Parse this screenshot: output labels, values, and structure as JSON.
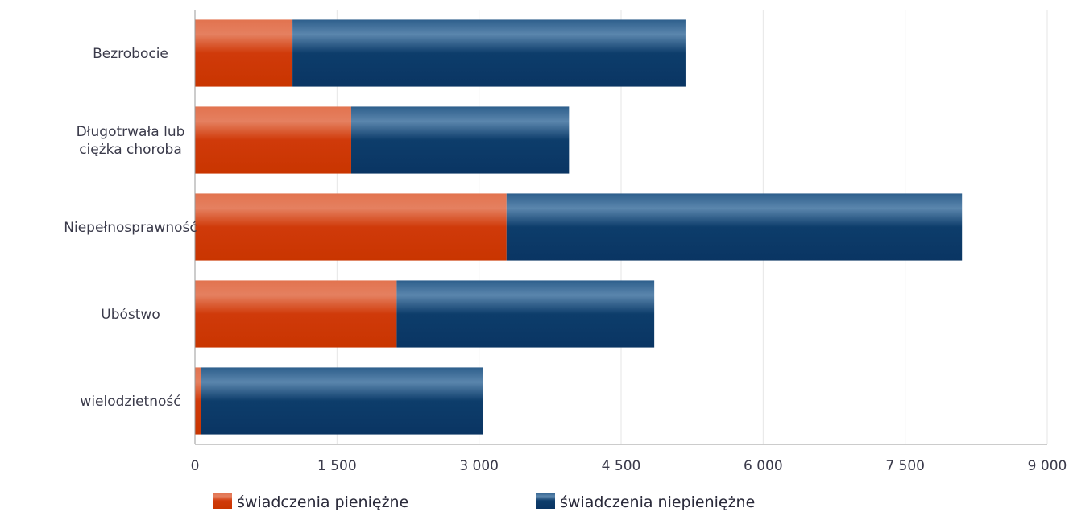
{
  "chart_data": {
    "type": "bar",
    "orientation": "horizontal",
    "stacked": true,
    "categories": [
      "Bezrobocie",
      "Długotrwała lub\nciężka choroba",
      "Niepełnosprawność",
      "Ubóstwo",
      "wielodzietność"
    ],
    "series": [
      {
        "name": "świadczenia pieniężne",
        "color": "#d43d0c",
        "values": [
          1030,
          1650,
          3290,
          2130,
          60
        ]
      },
      {
        "name": "świadczenia niepieniężne",
        "color": "#0c3f6e",
        "values": [
          4150,
          2300,
          4810,
          2720,
          2980
        ]
      }
    ],
    "x_ticks": [
      "0",
      "1 500",
      "3 000",
      "4 500",
      "6 000",
      "7 500",
      "9 000"
    ],
    "xlim": [
      0,
      9000
    ],
    "grid": true,
    "legend_position": "bottom"
  }
}
